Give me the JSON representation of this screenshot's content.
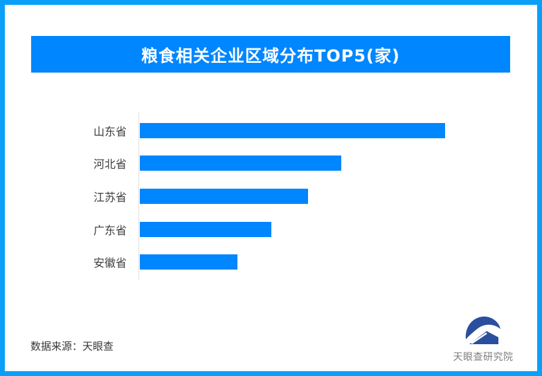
{
  "page": {
    "border_color": "#0aa0f8",
    "background": "#ffffff"
  },
  "banner": {
    "title": "粮食相关企业区域分布TOP5(家)",
    "bg_color": "#0086ff",
    "text_color": "#ffffff"
  },
  "chart_data": {
    "type": "bar",
    "orientation": "horizontal",
    "title": "粮食相关企业区域分布TOP5(家)",
    "categories": [
      "山东省",
      "河北省",
      "江苏省",
      "广东省",
      "安徽省"
    ],
    "values": [
      100,
      66,
      55,
      43,
      32
    ],
    "value_note": "no numeric axis or data labels shown; values are relative, longest bar = 100",
    "bar_color": "#0086ff",
    "axis_line_color": "#e0e0e0",
    "grid": false,
    "legend": false
  },
  "footer": {
    "source_text": "数据来源：天眼查",
    "logo": {
      "icon": "tianyancha-logo",
      "label": "天眼查研究院",
      "icon_color": "#2b4f9e",
      "label_color": "#7d7d7d"
    }
  }
}
